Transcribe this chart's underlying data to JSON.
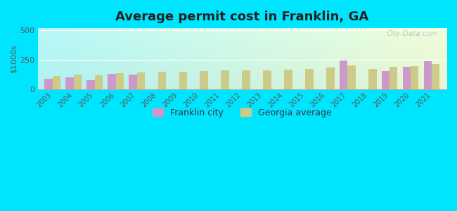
{
  "title": "Average permit cost in Franklin, GA",
  "ylabel": "$1000s",
  "years": [
    2003,
    2004,
    2005,
    2006,
    2007,
    2008,
    2009,
    2010,
    2011,
    2012,
    2013,
    2014,
    2015,
    2016,
    2017,
    2018,
    2019,
    2020,
    2021
  ],
  "franklin": [
    90,
    105,
    80,
    130,
    125,
    null,
    null,
    null,
    null,
    null,
    null,
    null,
    null,
    null,
    245,
    null,
    155,
    195,
    240
  ],
  "georgia": [
    115,
    125,
    120,
    140,
    145,
    150,
    150,
    155,
    160,
    165,
    160,
    170,
    175,
    185,
    205,
    175,
    195,
    200,
    215
  ],
  "franklin_color": "#cc99cc",
  "georgia_color": "#cccc88",
  "outer_bg": "#00e5ff",
  "ylim": [
    0,
    520
  ],
  "yticks": [
    0,
    250,
    500
  ],
  "bar_width": 0.38,
  "legend_franklin": "Franklin city",
  "legend_georgia": "Georgia average",
  "watermark": "City-Data.com"
}
